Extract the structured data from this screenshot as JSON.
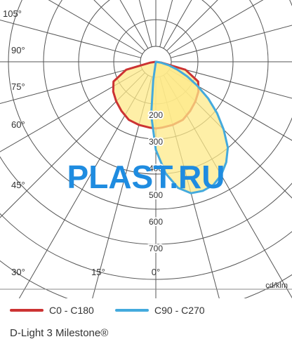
{
  "chart_data": {
    "type": "polar",
    "angle_labels": [
      "105°",
      "90°",
      "75°",
      "60°",
      "45°",
      "30°",
      "15°",
      "0°"
    ],
    "radial_ticks": [
      200,
      300,
      400,
      500,
      600,
      700
    ],
    "radial_tick_labels": [
      "200",
      "300",
      "400",
      "500",
      "600",
      "700"
    ],
    "unit": "cd/klm",
    "series": [
      {
        "name": "C0 - C180",
        "color": "#cc3333",
        "fill": "#fde98a",
        "angles": [
          -82,
          -75,
          -65,
          -55,
          -45,
          -35,
          -25,
          -15,
          -5,
          0,
          5,
          15,
          25,
          35,
          45,
          55,
          65,
          75,
          82
        ],
        "values": [
          20,
          115,
          175,
          195,
          210,
          225,
          240,
          245,
          248,
          250,
          248,
          245,
          240,
          225,
          210,
          195,
          175,
          115,
          20
        ]
      },
      {
        "name": "C90 - C270",
        "color": "#44aadd",
        "fill": "#fde98a",
        "angles": [
          -8,
          -5,
          0,
          5,
          10,
          15,
          20,
          25,
          30,
          35,
          40,
          45,
          50,
          55,
          60,
          65,
          70,
          75,
          80
        ],
        "values": [
          70,
          200,
          330,
          420,
          480,
          510,
          515,
          510,
          490,
          460,
          420,
          360,
          300,
          240,
          180,
          130,
          85,
          50,
          20
        ]
      }
    ]
  },
  "watermark": "PLAST.RU",
  "legend": {
    "item1": "C0 - C180",
    "item2": "C90 - C270"
  },
  "caption": "D-Light 3 Milestone®"
}
